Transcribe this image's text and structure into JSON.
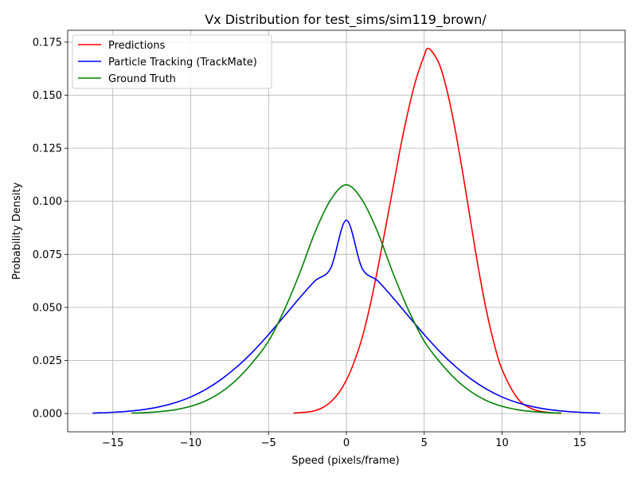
{
  "chart_data": {
    "type": "line",
    "title": "Vx Distribution for test_sims/sim119_brown/",
    "xlabel": "Speed (pixels/frame)",
    "ylabel": "Probability Density",
    "xlim": [
      -17.9,
      17.9
    ],
    "ylim": [
      -0.0086,
      0.1806
    ],
    "x_ticks": [
      -15,
      -10,
      -5,
      0,
      5,
      10,
      15
    ],
    "x_tick_labels": [
      "−15",
      "−10",
      "−5",
      "0",
      "5",
      "10",
      "15"
    ],
    "y_ticks": [
      0.0,
      0.025,
      0.05,
      0.075,
      0.1,
      0.125,
      0.15,
      0.175
    ],
    "y_tick_labels": [
      "0.000",
      "0.025",
      "0.050",
      "0.075",
      "0.100",
      "0.125",
      "0.150",
      "0.175"
    ],
    "grid": true,
    "legend_position": "top-left",
    "series": [
      {
        "name": "Predictions",
        "color": "#ff0000",
        "x": [
          -3.4,
          -2.5,
          -2,
          -1.5,
          -1,
          -0.5,
          0,
          0.5,
          1,
          1.5,
          2,
          2.5,
          3,
          3.5,
          4,
          4.5,
          5,
          5.2,
          5.5,
          6,
          6.5,
          7,
          7.5,
          8,
          8.5,
          9,
          9.5,
          10,
          11,
          12,
          13,
          13.8
        ],
        "y": [
          0.0002,
          0.0007,
          0.0014,
          0.0029,
          0.0055,
          0.0096,
          0.0157,
          0.0243,
          0.0354,
          0.0501,
          0.0677,
          0.0869,
          0.1066,
          0.1263,
          0.1436,
          0.1581,
          0.1687,
          0.172,
          0.1706,
          0.1641,
          0.1511,
          0.1333,
          0.1123,
          0.0897,
          0.0676,
          0.0483,
          0.0327,
          0.0207,
          0.0071,
          0.002,
          0.0005,
          0.0001
        ]
      },
      {
        "name": "Particle Tracking (TrackMate)",
        "color": "#0000ff",
        "x": [
          -16.3,
          -15,
          -14,
          -13,
          -12,
          -11,
          -10,
          -9,
          -8,
          -7,
          -6,
          -5,
          -4,
          -3,
          -2,
          -1,
          0,
          1,
          2,
          3,
          4,
          5,
          6,
          7,
          8,
          9,
          10,
          11,
          12,
          13,
          14,
          15,
          16.3
        ],
        "y": [
          0.0002,
          0.0006,
          0.0011,
          0.0019,
          0.0032,
          0.0051,
          0.0078,
          0.0115,
          0.0163,
          0.0222,
          0.0292,
          0.0372,
          0.0458,
          0.0545,
          0.0626,
          0.0686,
          0.0911,
          0.0686,
          0.0626,
          0.0545,
          0.0458,
          0.0372,
          0.0292,
          0.0222,
          0.0163,
          0.0115,
          0.0078,
          0.0051,
          0.0032,
          0.0019,
          0.0011,
          0.0006,
          0.0002
        ]
      },
      {
        "name": "Ground Truth",
        "color": "#008000",
        "x": [
          -13.8,
          -13,
          -12,
          -11,
          -10,
          -9,
          -8,
          -7,
          -6,
          -5,
          -4,
          -3,
          -2,
          -1,
          0,
          1,
          2,
          3,
          4,
          5,
          6,
          7,
          8,
          9,
          10,
          11,
          12,
          13,
          13.8
        ],
        "y": [
          0.0002,
          0.0004,
          0.0009,
          0.0018,
          0.0034,
          0.0061,
          0.0103,
          0.0163,
          0.0243,
          0.0341,
          0.0486,
          0.0661,
          0.0857,
          0.1008,
          0.1078,
          0.1008,
          0.0857,
          0.0661,
          0.0486,
          0.0341,
          0.0243,
          0.0163,
          0.0103,
          0.0061,
          0.0034,
          0.0018,
          0.0009,
          0.0004,
          0.0002
        ]
      }
    ]
  }
}
